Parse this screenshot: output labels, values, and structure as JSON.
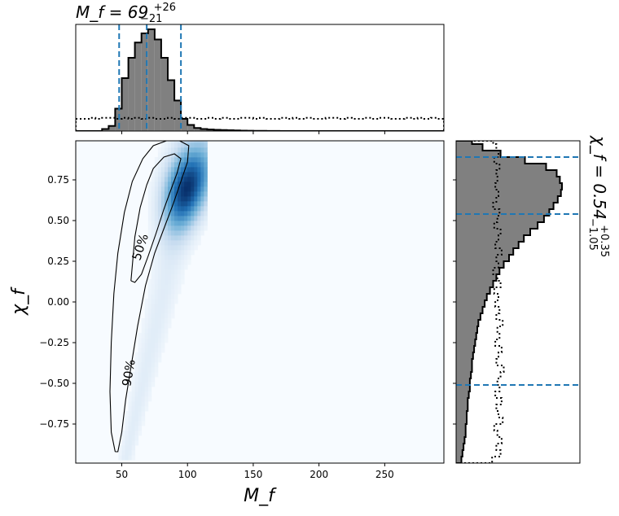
{
  "chart_data": [
    {
      "type": "heatmap",
      "panel": "joint-posterior",
      "xlabel": "M_f",
      "ylabel": "χ_f",
      "xlim": [
        15,
        295
      ],
      "ylim": [
        -0.99,
        0.99
      ],
      "xticks": [
        "50",
        "100",
        "150",
        "200",
        "250"
      ],
      "xtick_values": [
        50,
        100,
        150,
        200,
        250
      ],
      "yticks": [
        "0.75",
        "0.50",
        "0.25",
        "0.00",
        "−0.25",
        "−0.50",
        "−0.75"
      ],
      "ytick_values": [
        0.75,
        0.5,
        0.25,
        0.0,
        -0.25,
        -0.5,
        -0.75
      ],
      "colormap": "Blues",
      "contour_labels": [
        "50%",
        "90%"
      ],
      "contour_50": [
        [
          57,
          0.13
        ],
        [
          60,
          0.4
        ],
        [
          64,
          0.58
        ],
        [
          69,
          0.72
        ],
        [
          74,
          0.82
        ],
        [
          82,
          0.89
        ],
        [
          90,
          0.91
        ],
        [
          95,
          0.88
        ],
        [
          92,
          0.79
        ],
        [
          87,
          0.68
        ],
        [
          82,
          0.57
        ],
        [
          76,
          0.42
        ],
        [
          70,
          0.28
        ],
        [
          65,
          0.17
        ],
        [
          60,
          0.12
        ],
        [
          57,
          0.13
        ]
      ],
      "contour_90": [
        [
          45,
          -0.92
        ],
        [
          42,
          -0.8
        ],
        [
          41,
          -0.55
        ],
        [
          42,
          -0.25
        ],
        [
          44,
          0.05
        ],
        [
          47,
          0.3
        ],
        [
          52,
          0.55
        ],
        [
          58,
          0.74
        ],
        [
          66,
          0.88
        ],
        [
          74,
          0.96
        ],
        [
          84,
          0.99
        ],
        [
          94,
          0.99
        ],
        [
          101,
          0.96
        ],
        [
          100,
          0.86
        ],
        [
          95,
          0.74
        ],
        [
          89,
          0.6
        ],
        [
          82,
          0.45
        ],
        [
          75,
          0.3
        ],
        [
          68,
          0.1
        ],
        [
          62,
          -0.15
        ],
        [
          57,
          -0.4
        ],
        [
          53,
          -0.6
        ],
        [
          50,
          -0.8
        ],
        [
          47,
          -0.92
        ],
        [
          45,
          -0.92
        ]
      ]
    },
    {
      "type": "bar",
      "panel": "marginal-mass",
      "title_main": "M_f = 69",
      "title_sup": "+26",
      "title_sub": "−21",
      "bin_edges": [
        15,
        20,
        25,
        30,
        35,
        40,
        45,
        50,
        55,
        60,
        65,
        70,
        75,
        80,
        85,
        90,
        95,
        100,
        105,
        110,
        115,
        120,
        125,
        130,
        135,
        140,
        145,
        150,
        155,
        160,
        165,
        170,
        175,
        180,
        185,
        190,
        195,
        200,
        205,
        210,
        215,
        220,
        225,
        230,
        235,
        240,
        245,
        250,
        255,
        260,
        265,
        270,
        275,
        280,
        285,
        290,
        295
      ],
      "posterior": [
        0,
        0,
        0,
        0,
        0.02,
        0.05,
        0.22,
        0.52,
        0.72,
        0.87,
        0.96,
        1.0,
        0.9,
        0.72,
        0.5,
        0.3,
        0.12,
        0.06,
        0.03,
        0.02,
        0.015,
        0.012,
        0.01,
        0.008,
        0.006,
        0.004,
        0.003,
        0.002,
        0.002,
        0.001,
        0.001,
        0,
        0,
        0,
        0,
        0,
        0,
        0,
        0,
        0,
        0,
        0,
        0,
        0,
        0,
        0,
        0,
        0,
        0,
        0,
        0,
        0,
        0,
        0,
        0,
        0
      ],
      "prior": [
        0.12,
        0.12,
        0.13,
        0.12,
        0.13,
        0.13,
        0.12,
        0.13,
        0.12,
        0.13,
        0.12,
        0.13,
        0.12,
        0.12,
        0.13,
        0.12,
        0.13,
        0.13,
        0.12,
        0.12,
        0.13,
        0.12,
        0.13,
        0.12,
        0.12,
        0.13,
        0.13,
        0.12,
        0.13,
        0.12,
        0.12,
        0.13,
        0.12,
        0.13,
        0.12,
        0.13,
        0.12,
        0.12,
        0.13,
        0.13,
        0.12,
        0.13,
        0.12,
        0.12,
        0.13,
        0.12,
        0.13,
        0.13,
        0.12,
        0.12,
        0.13,
        0.12,
        0.13,
        0.12,
        0.13,
        0.12
      ],
      "quantile_lines": [
        48,
        69,
        95
      ]
    },
    {
      "type": "bar",
      "panel": "marginal-spin",
      "orientation": "horizontal",
      "title_main": "χ_f = 0.54",
      "title_sup": "+0.35",
      "title_sub": "−1.05",
      "bin_edges": [
        -0.99,
        -0.95,
        -0.91,
        -0.87,
        -0.83,
        -0.79,
        -0.75,
        -0.71,
        -0.67,
        -0.63,
        -0.59,
        -0.55,
        -0.51,
        -0.47,
        -0.43,
        -0.39,
        -0.35,
        -0.31,
        -0.27,
        -0.23,
        -0.19,
        -0.15,
        -0.11,
        -0.07,
        -0.03,
        0.01,
        0.05,
        0.09,
        0.13,
        0.17,
        0.21,
        0.25,
        0.29,
        0.33,
        0.37,
        0.41,
        0.45,
        0.49,
        0.53,
        0.57,
        0.61,
        0.65,
        0.69,
        0.73,
        0.77,
        0.81,
        0.85,
        0.89,
        0.93,
        0.97,
        0.99
      ],
      "posterior": [
        0.05,
        0.06,
        0.07,
        0.08,
        0.09,
        0.09,
        0.1,
        0.1,
        0.11,
        0.11,
        0.12,
        0.13,
        0.13,
        0.14,
        0.15,
        0.15,
        0.16,
        0.17,
        0.18,
        0.19,
        0.2,
        0.21,
        0.23,
        0.25,
        0.27,
        0.29,
        0.32,
        0.35,
        0.38,
        0.41,
        0.45,
        0.5,
        0.54,
        0.59,
        0.64,
        0.7,
        0.77,
        0.83,
        0.88,
        0.92,
        0.96,
        0.99,
        1.0,
        0.98,
        0.95,
        0.85,
        0.65,
        0.42,
        0.25,
        0.15
      ],
      "prior": [
        0.34,
        0.42,
        0.38,
        0.43,
        0.39,
        0.36,
        0.44,
        0.4,
        0.38,
        0.43,
        0.37,
        0.41,
        0.39,
        0.42,
        0.45,
        0.38,
        0.4,
        0.43,
        0.37,
        0.41,
        0.39,
        0.44,
        0.38,
        0.41,
        0.37,
        0.4,
        0.36,
        0.42,
        0.39,
        0.35,
        0.4,
        0.38,
        0.43,
        0.37,
        0.4,
        0.42,
        0.36,
        0.39,
        0.41,
        0.35,
        0.38,
        0.4,
        0.37,
        0.39,
        0.38,
        0.41,
        0.36,
        0.4,
        0.38,
        0.35
      ],
      "quantile_lines": [
        -0.51,
        0.54,
        0.89
      ]
    }
  ]
}
